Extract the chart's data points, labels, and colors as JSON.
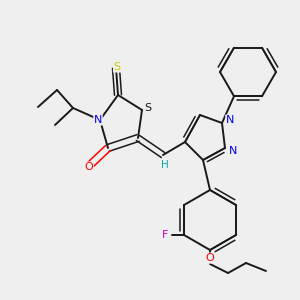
{
  "bg_color": "#efefef",
  "bond_color": "#1a1a1a",
  "atom_colors": {
    "N": "#0000ee",
    "O": "#ff0000",
    "S_yellow": "#cccc00",
    "F": "#cc00cc",
    "H": "#00aaaa",
    "C": "#1a1a1a"
  }
}
